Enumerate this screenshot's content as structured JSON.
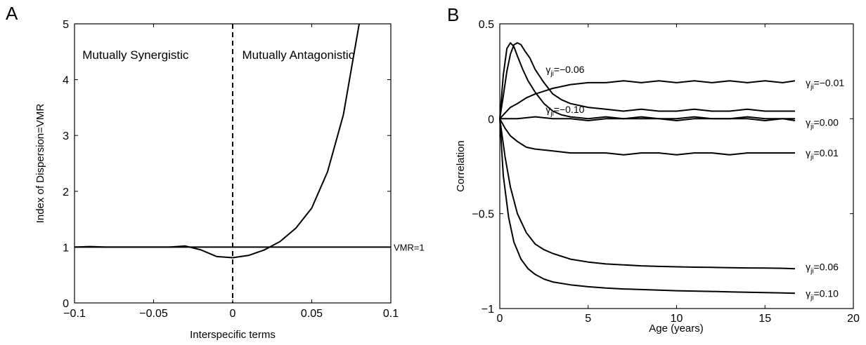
{
  "chart_data": [
    {
      "panel": "A",
      "type": "line",
      "xlabel": "Interspecific terms",
      "ylabel": "Index of Dispersion=VMR",
      "xlim": [
        -0.1,
        0.1
      ],
      "ylim": [
        0,
        5
      ],
      "xticks": [
        -0.1,
        -0.05,
        0,
        0.05,
        0.1
      ],
      "xtick_labels": [
        "−0.1",
        "−0.05",
        "0",
        "0.05",
        "0.1"
      ],
      "yticks": [
        0,
        1,
        2,
        3,
        4,
        5
      ],
      "ytick_labels": [
        "0",
        "1",
        "2",
        "3",
        "4",
        "5"
      ],
      "grid": false,
      "region_labels": [
        {
          "text": "Mutually Synergistic",
          "x": -0.095,
          "y": 4.37
        },
        {
          "text": "Mutually Antagonistic",
          "x": 0.006,
          "y": 4.37
        }
      ],
      "vline": {
        "x": 0,
        "style": "dashed"
      },
      "reference_line": {
        "y": 1,
        "label": "VMR=1"
      },
      "series": [
        {
          "x": [
            -0.1,
            -0.09,
            -0.08,
            -0.07,
            -0.06,
            -0.05,
            -0.04,
            -0.03,
            -0.02,
            -0.01,
            0,
            0.01,
            0.02,
            0.03,
            0.04,
            0.05,
            0.06,
            0.07,
            0.08
          ],
          "y": [
            1.0,
            1.01,
            1.0,
            1.0,
            1.0,
            1.0,
            1.0,
            1.02,
            0.95,
            0.83,
            0.81,
            0.85,
            0.95,
            1.1,
            1.34,
            1.7,
            2.35,
            3.37,
            5.0
          ]
        }
      ]
    },
    {
      "panel": "B",
      "type": "line",
      "xlabel": "Age (years)",
      "ylabel": "Correlation",
      "xlim": [
        0,
        20
      ],
      "ylim": [
        -1,
        0.5
      ],
      "xticks": [
        0,
        5,
        10,
        15,
        20
      ],
      "xtick_labels": [
        "0",
        "5",
        "10",
        "15",
        "20"
      ],
      "yticks": [
        -1,
        -0.5,
        0,
        0.5
      ],
      "ytick_labels": [
        "−1",
        "−0.5",
        "0",
        "0.5"
      ],
      "grid": false,
      "series": [
        {
          "name": "γji=−0.06",
          "x": [
            0,
            0.2,
            0.4,
            0.6,
            0.8,
            1.0,
            1.3,
            1.6,
            2.0,
            2.5,
            3.0,
            3.5,
            4.0,
            5.0,
            6.0,
            7.0,
            8.0,
            9.0,
            10.0,
            11.0,
            12.0,
            13.0,
            14.0,
            15.0,
            16.0,
            16.7
          ],
          "y": [
            0,
            0.23,
            0.37,
            0.4,
            0.38,
            0.33,
            0.26,
            0.2,
            0.14,
            0.08,
            0.04,
            0.02,
            0.01,
            0.0,
            0.01,
            0.0,
            0.0,
            0.0,
            -0.01,
            0.0,
            0.0,
            0.0,
            0.0,
            -0.01,
            0.0,
            -0.01
          ]
        },
        {
          "name": "γji=−0.10",
          "x": [
            0,
            0.2,
            0.4,
            0.6,
            0.8,
            1.0,
            1.2,
            1.4,
            1.7,
            2.0,
            2.5,
            3.0,
            3.5,
            4.0,
            5.0,
            6.0,
            7.0,
            8.0,
            9.0,
            10.0,
            11.0,
            12.0,
            13.0,
            14.0,
            15.0,
            16.0,
            16.7
          ],
          "y": [
            0,
            0.12,
            0.25,
            0.34,
            0.39,
            0.4,
            0.39,
            0.36,
            0.32,
            0.26,
            0.19,
            0.13,
            0.1,
            0.08,
            0.06,
            0.05,
            0.04,
            0.05,
            0.04,
            0.04,
            0.05,
            0.04,
            0.04,
            0.05,
            0.04,
            0.04,
            0.04
          ]
        },
        {
          "name": "γji=−0.01",
          "x": [
            0,
            0.3,
            0.6,
            1.0,
            1.5,
            2.0,
            3.0,
            4.0,
            5.0,
            6.0,
            7.0,
            8.0,
            9.0,
            10.0,
            11.0,
            12.0,
            13.0,
            14.0,
            15.0,
            16.0,
            16.7
          ],
          "y": [
            0,
            0.03,
            0.06,
            0.08,
            0.11,
            0.13,
            0.16,
            0.18,
            0.19,
            0.19,
            0.2,
            0.19,
            0.2,
            0.19,
            0.2,
            0.19,
            0.2,
            0.19,
            0.2,
            0.19,
            0.2
          ]
        },
        {
          "name": "γji=0.00",
          "x": [
            0,
            1,
            2,
            3,
            4,
            5,
            6,
            7,
            8,
            9,
            10,
            11,
            12,
            13,
            14,
            15,
            16,
            16.7
          ],
          "y": [
            0,
            0.0,
            0.01,
            0.0,
            0.0,
            -0.01,
            0.0,
            0.0,
            0.01,
            0.0,
            0.0,
            0.01,
            0.0,
            0.0,
            0.01,
            0.0,
            0.0,
            0.0
          ]
        },
        {
          "name": "γji=0.01",
          "x": [
            0,
            0.3,
            0.6,
            1.0,
            1.5,
            2.0,
            3.0,
            4.0,
            5.0,
            6.0,
            7.0,
            8.0,
            9.0,
            10.0,
            11.0,
            12.0,
            13.0,
            14.0,
            15.0,
            16.0,
            16.7
          ],
          "y": [
            0,
            -0.05,
            -0.09,
            -0.12,
            -0.15,
            -0.16,
            -0.17,
            -0.18,
            -0.18,
            -0.18,
            -0.19,
            -0.18,
            -0.18,
            -0.19,
            -0.18,
            -0.18,
            -0.19,
            -0.18,
            -0.18,
            -0.18,
            -0.18
          ]
        },
        {
          "name": "γji=0.06",
          "x": [
            0,
            0.3,
            0.6,
            1.0,
            1.5,
            2.0,
            2.5,
            3.0,
            4.0,
            5.0,
            6.0,
            7.0,
            8.0,
            9.0,
            10.0,
            11.0,
            12.0,
            13.0,
            14.0,
            15.0,
            16.0,
            16.7
          ],
          "y": [
            0,
            -0.2,
            -0.36,
            -0.5,
            -0.6,
            -0.66,
            -0.69,
            -0.71,
            -0.74,
            -0.755,
            -0.765,
            -0.77,
            -0.775,
            -0.778,
            -0.78,
            -0.782,
            -0.783,
            -0.785,
            -0.786,
            -0.787,
            -0.788,
            -0.79
          ]
        },
        {
          "name": "γji=0.10",
          "x": [
            0,
            0.2,
            0.5,
            0.8,
            1.2,
            1.6,
            2.0,
            2.5,
            3.0,
            4.0,
            5.0,
            6.0,
            7.0,
            8.0,
            9.0,
            10.0,
            11.0,
            12.0,
            13.0,
            14.0,
            15.0,
            16.0,
            16.7
          ],
          "y": [
            0,
            -0.3,
            -0.52,
            -0.65,
            -0.74,
            -0.79,
            -0.82,
            -0.845,
            -0.86,
            -0.875,
            -0.885,
            -0.892,
            -0.897,
            -0.9,
            -0.903,
            -0.906,
            -0.908,
            -0.91,
            -0.912,
            -0.914,
            -0.916,
            -0.918,
            -0.92
          ]
        }
      ],
      "annotations": [
        {
          "base": "γ",
          "sub": "ji",
          "rest": "=−0.06",
          "x": 2.6,
          "y": 0.26
        },
        {
          "base": "γ",
          "sub": "ji",
          "rest": "=−0.10",
          "x": 2.6,
          "y": 0.05
        },
        {
          "base": "γ",
          "sub": "ji",
          "rest": "=−0.01",
          "x": 17.3,
          "y": 0.19
        },
        {
          "base": "γ",
          "sub": "ji",
          "rest": "=0.00",
          "x": 17.3,
          "y": -0.02
        },
        {
          "base": "γ",
          "sub": "ji",
          "rest": "=0.01",
          "x": 17.3,
          "y": -0.18
        },
        {
          "base": "γ",
          "sub": "ji",
          "rest": "=0.06",
          "x": 17.3,
          "y": -0.78
        },
        {
          "base": "γ",
          "sub": "ji",
          "rest": "=0.10",
          "x": 17.3,
          "y": -0.92
        }
      ]
    }
  ]
}
